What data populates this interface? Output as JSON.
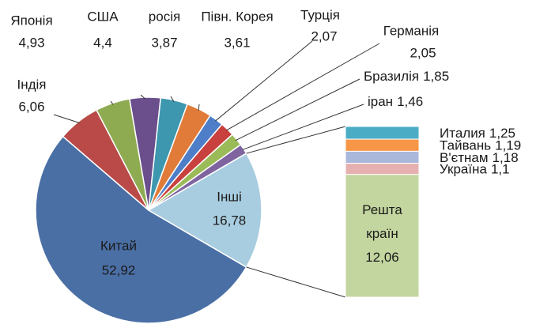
{
  "chart_data": {
    "type": "bar-of-pie",
    "categories": [
      "Китай",
      "Індія",
      "Японія",
      "США",
      "росія",
      "Півн. Корея",
      "Турція",
      "Германія",
      "Бразилія",
      "іран",
      "Інші"
    ],
    "values": [
      52.92,
      6.06,
      4.93,
      4.4,
      3.87,
      3.61,
      2.07,
      2.05,
      1.85,
      1.46,
      16.78
    ],
    "value_labels": [
      "52,92",
      "6,06",
      "4,93",
      "4,4",
      "3,87",
      "3,61",
      "2,07",
      "2,05",
      "1,85",
      "1,46",
      "16,78"
    ],
    "colors": [
      "#4a6fa5",
      "#b94a48",
      "#8fab52",
      "#6b4f8c",
      "#3d97ae",
      "#e07b39",
      "#4f7ec9",
      "#c9413e",
      "#9bbb59",
      "#7f64a0",
      "#a9cde0"
    ],
    "breakdown": {
      "categories": [
        "Италия",
        "Тайвань",
        "В'єтнам",
        "Україна",
        "Решта країн"
      ],
      "values": [
        1.25,
        1.19,
        1.18,
        1.1,
        12.06
      ],
      "value_labels": [
        "1,25",
        "1,19",
        "1,18",
        "1,1",
        "12,06"
      ],
      "colors": [
        "#4bacc6",
        "#f79646",
        "#aab8dc",
        "#e6b0b0",
        "#c4d6a0"
      ]
    }
  }
}
